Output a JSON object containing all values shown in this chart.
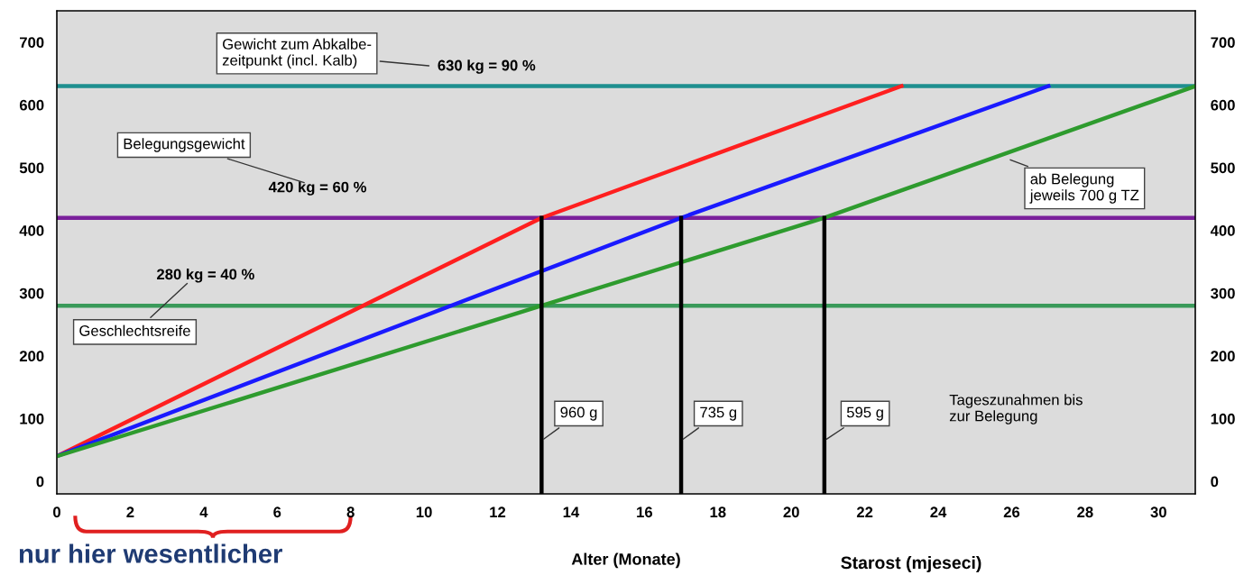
{
  "chart_data": {
    "type": "line",
    "xlabel": "Alter (Monate)",
    "xlim": [
      0,
      31
    ],
    "xticks": [
      0,
      2,
      4,
      6,
      8,
      10,
      12,
      14,
      16,
      18,
      20,
      22,
      24,
      26,
      28,
      30
    ],
    "ylim": [
      -20,
      750
    ],
    "yticks": [
      0,
      100,
      200,
      300,
      400,
      500,
      600,
      700
    ],
    "y2lim": [
      -20,
      750
    ],
    "y2ticks": [
      0,
      100,
      200,
      300,
      400,
      500,
      600,
      700
    ],
    "series": [
      {
        "color": "#ff1f1f",
        "x": [
          0,
          13.2,
          23
        ],
        "values": [
          40,
          420,
          630
        ]
      },
      {
        "color": "#1a1aff",
        "x": [
          0,
          17,
          27
        ],
        "values": [
          40,
          420,
          630
        ]
      },
      {
        "color": "#2e9b2e",
        "x": [
          0,
          20.9,
          31
        ],
        "values": [
          40,
          420,
          630
        ]
      },
      {
        "color": "#000000",
        "x": [
          13.2,
          13.2
        ],
        "values": [
          -20,
          420
        ]
      },
      {
        "color": "#000000",
        "x": [
          17,
          17
        ],
        "values": [
          -20,
          420
        ]
      },
      {
        "color": "#000000",
        "x": [
          20.9,
          20.9
        ],
        "values": [
          -20,
          420
        ]
      }
    ],
    "ref_lines": [
      {
        "axis": "y",
        "value": 630,
        "label": "630 kg = 90 %",
        "color": "#1f8f8f"
      },
      {
        "axis": "y",
        "value": 420,
        "label": "420 kg = 60 %",
        "color": "#7a1f9b"
      },
      {
        "axis": "y",
        "value": 280,
        "label": "280 kg = 40 %",
        "color": "#3a9a5a"
      }
    ],
    "annotations": [
      "Gewicht zum Abkalbe-\nzeitpunkt (incl. Kalb)",
      "Belegungsgewicht",
      "Geschlechtsreife",
      "ab Belegung\njeweils 700 g TZ",
      {
        "text": "960 g",
        "x": 13.2,
        "y": 65
      },
      {
        "text": "735 g",
        "x": 17,
        "y": 65
      },
      {
        "text": "595 g",
        "x": 20.9,
        "y": 65
      },
      "Tageszunahmen bis\nzur Belegung",
      "Starost (mjeseci)",
      "nur hier wesentlicher"
    ]
  }
}
